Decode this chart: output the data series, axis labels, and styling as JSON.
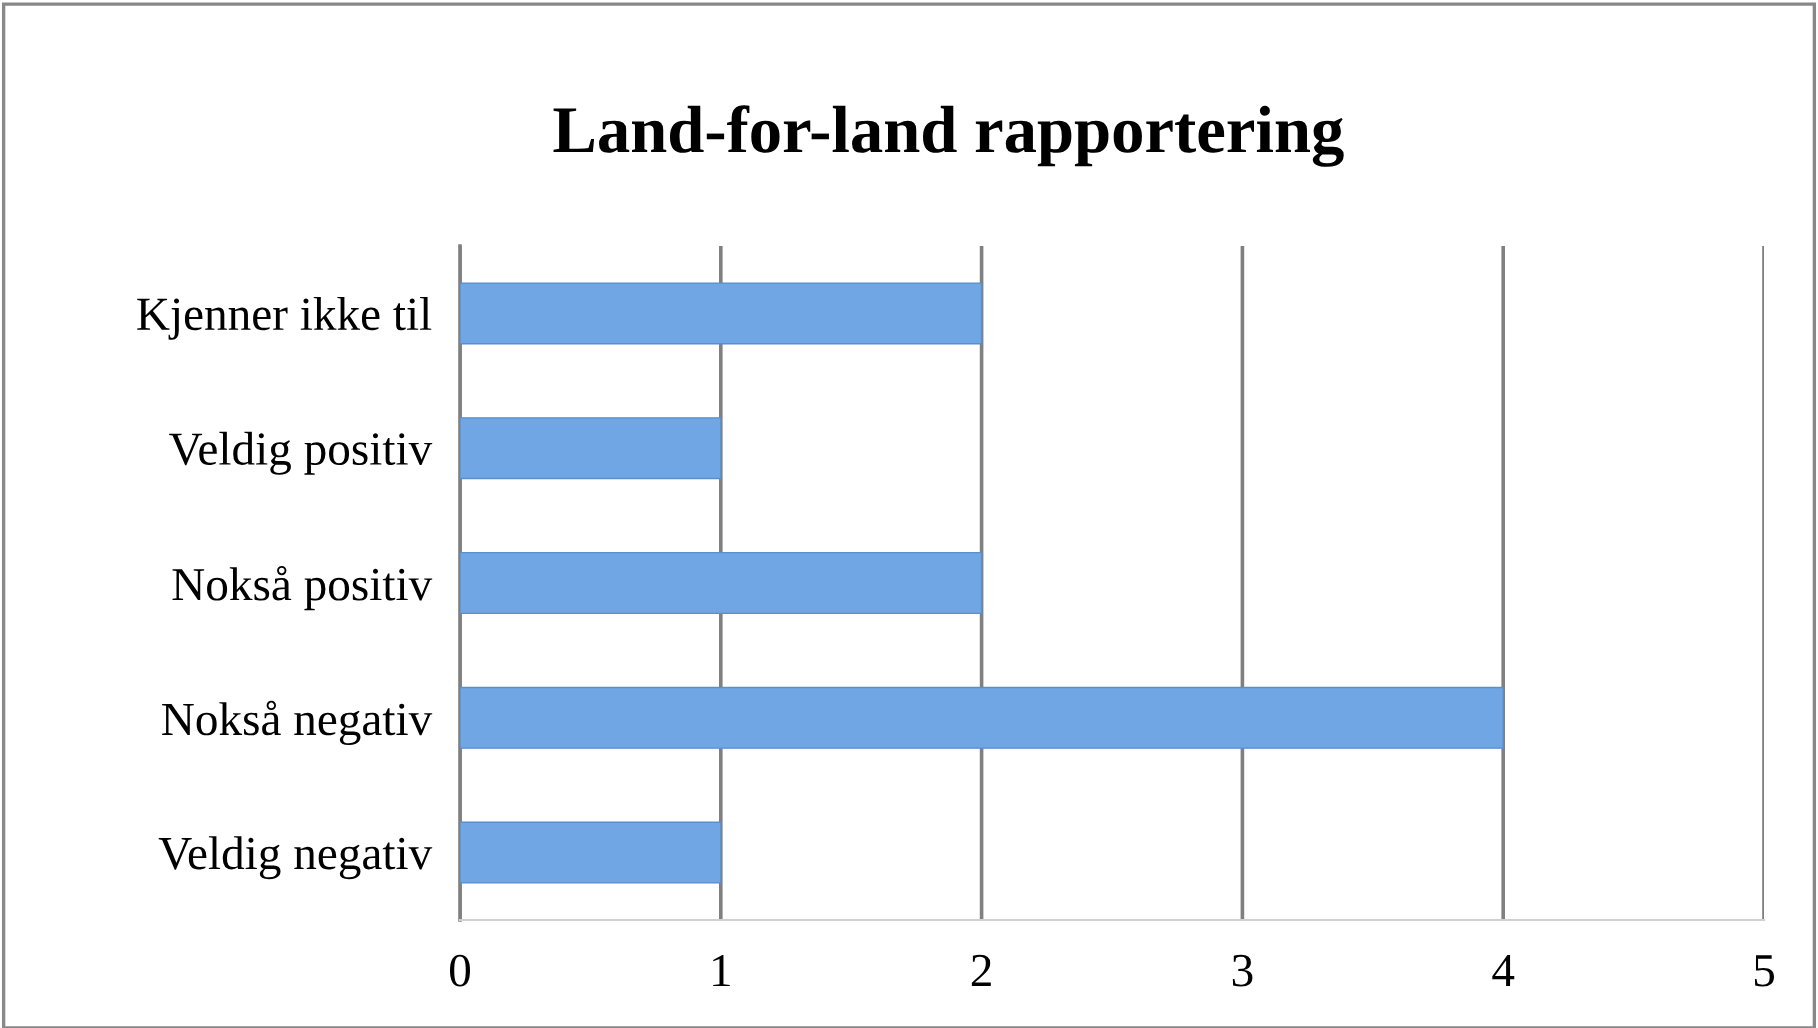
{
  "chart_data": {
    "type": "bar",
    "title": "Land-for-land rapportering",
    "orientation": "horizontal",
    "categories": [
      "Kjenner ikke til",
      "Veldig positiv",
      "Nokså positiv",
      "Nokså negativ",
      "Veldig negativ"
    ],
    "values": [
      2,
      1,
      2,
      4,
      1
    ],
    "color": "#6fa6e3",
    "xlim": [
      0,
      5
    ],
    "xticks": [
      0,
      1,
      2,
      3,
      4,
      5
    ],
    "grid": "x"
  }
}
